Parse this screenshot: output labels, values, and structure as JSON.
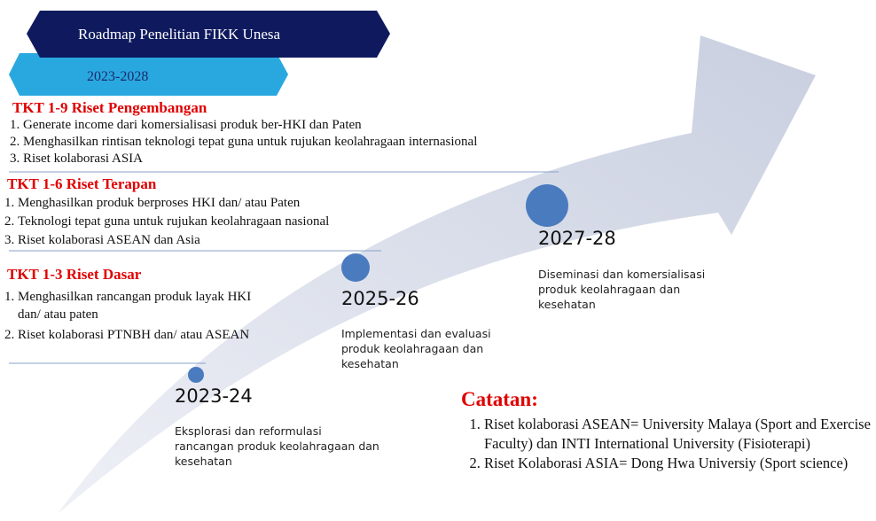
{
  "header": {
    "title": "Roadmap Penelitian FIKK Unesa",
    "period": "2023-2028"
  },
  "sections": [
    {
      "title": "TKT 1-9 Riset Pengembangan",
      "items": [
        "Generate income dari komersialisasi produk ber-HKI dan Paten",
        "Menghasilkan rintisan teknologi tepat guna untuk rujukan keolahragaan internasional",
        "Riset kolaborasi ASIA"
      ]
    },
    {
      "title": "TKT 1-6 Riset Terapan",
      "items": [
        "Menghasilkan produk berproses HKI dan/ atau Paten",
        "Teknologi tepat guna untuk rujukan keolahragaan nasional",
        "Riset kolaborasi ASEAN dan Asia"
      ]
    },
    {
      "title": "TKT 1-3 Riset Dasar",
      "items": [
        "Menghasilkan rancangan produk layak HKI dan/ atau paten",
        "Riset kolaborasi PTNBH dan/ atau ASEAN"
      ]
    }
  ],
  "milestones": [
    {
      "period": "2023-24",
      "description": "Eksplorasi dan reformulasi rancangan produk keolahragaan dan kesehatan"
    },
    {
      "period": "2025-26",
      "description": "Implementasi dan evaluasi produk keolahragaan dan kesehatan"
    },
    {
      "period": "2027-28",
      "description": "Diseminasi dan komersialisasi produk keolahragaan dan kesehatan"
    }
  ],
  "notes": {
    "title": "Catatan:",
    "items": [
      "Riset kolaborasi ASEAN= University Malaya (Sport and Exercise Faculty) dan INTI International University (Fisioterapi)",
      "Riset Kolaborasi ASIA= Dong Hwa Universiy (Sport science)"
    ]
  }
}
